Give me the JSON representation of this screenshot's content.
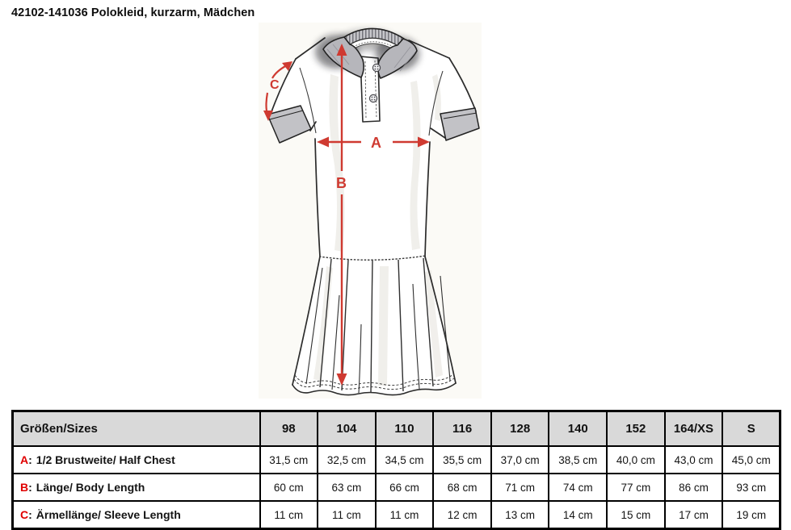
{
  "page_title": "42102-141036 Polokleid, kurzarm, Mädchen",
  "drawing": {
    "description": "technical-flat-sketch-polo-dress",
    "measure_labels": {
      "a": "A",
      "b": "B",
      "c": "C"
    }
  },
  "table": {
    "separator": ":",
    "header": {
      "label": "Größen/Sizes",
      "sizes": [
        "98",
        "104",
        "110",
        "116",
        "128",
        "140",
        "152",
        "164/XS",
        "S"
      ]
    },
    "rows": [
      {
        "key": "A",
        "label": "1/2 Brustweite/ Half Chest",
        "values": [
          "31,5 cm",
          "32,5 cm",
          "34,5 cm",
          "35,5 cm",
          "37,0 cm",
          "38,5 cm",
          "40,0 cm",
          "43,0 cm",
          "45,0 cm"
        ]
      },
      {
        "key": "B",
        "label": "Länge/ Body Length",
        "values": [
          "60 cm",
          "63 cm",
          "66 cm",
          "68 cm",
          "71 cm",
          "74 cm",
          "77 cm",
          "86 cm",
          "93 cm"
        ]
      },
      {
        "key": "C",
        "label": "Ärmellänge/ Sleeve Length",
        "values": [
          "11 cm",
          "11 cm",
          "11 cm",
          "12 cm",
          "13 cm",
          "14 cm",
          "15 cm",
          "17 cm",
          "19 cm"
        ]
      }
    ]
  },
  "colors": {
    "accent_red": "#cf3a31",
    "key_red": "#e00000",
    "header_bg": "#d9d9d9",
    "collar_gray": "#c0c0c5",
    "sketch_bg": "#fbfaf6"
  }
}
